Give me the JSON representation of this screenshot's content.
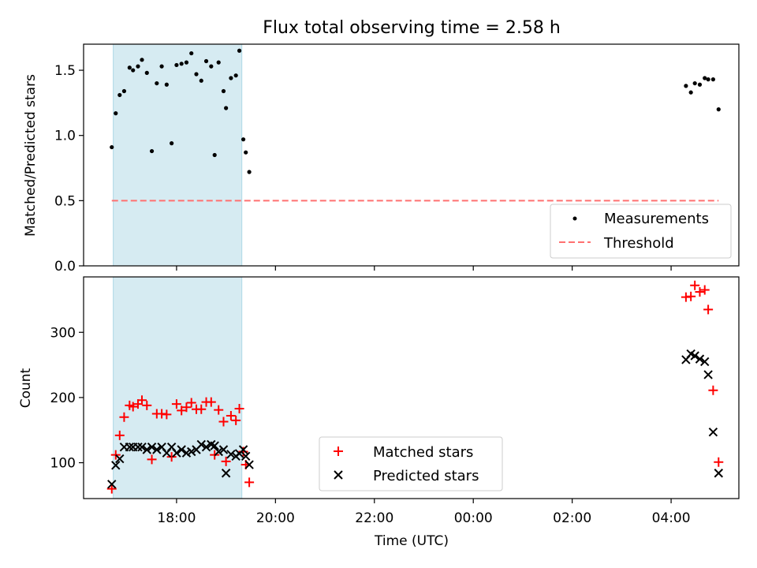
{
  "title": "Flux total observing time = 2.58 h",
  "colors": {
    "shade": "#add8e6",
    "measurement": "#000000",
    "threshold": "#ff7070",
    "matched": "#ff0000",
    "predicted": "#000000"
  },
  "chart_data": [
    {
      "type": "scatter",
      "ylabel": "Matched/Predicted stars",
      "ylim": [
        0.0,
        1.7
      ],
      "yticks": [
        0.0,
        0.5,
        1.0,
        1.5
      ],
      "ytick_labels": [
        "0.0",
        "0.5",
        "1.0",
        "1.5"
      ],
      "xlim_hours": [
        16.12,
        29.37
      ],
      "shaded_region_hours": [
        16.72,
        19.32
      ],
      "legend_position": "lower-right",
      "series": [
        {
          "name": "Measurements",
          "marker": "dot",
          "x_hours": [
            16.69,
            16.77,
            16.85,
            16.94,
            17.05,
            17.12,
            17.22,
            17.3,
            17.4,
            17.5,
            17.6,
            17.7,
            17.8,
            17.9,
            18.0,
            18.1,
            18.2,
            18.3,
            18.4,
            18.5,
            18.6,
            18.7,
            18.77,
            18.85,
            18.95,
            19.0,
            19.1,
            19.2,
            19.27,
            19.35,
            19.4,
            19.47,
            28.3,
            28.4,
            28.48,
            28.58,
            28.68,
            28.75,
            28.85,
            28.96
          ],
          "y": [
            0.91,
            1.17,
            1.31,
            1.34,
            1.52,
            1.5,
            1.53,
            1.58,
            1.48,
            0.88,
            1.4,
            1.53,
            1.39,
            0.94,
            1.54,
            1.55,
            1.56,
            1.63,
            1.47,
            1.42,
            1.57,
            1.53,
            0.85,
            1.56,
            1.34,
            1.21,
            1.44,
            1.46,
            1.65,
            0.97,
            0.87,
            0.72,
            1.38,
            1.33,
            1.4,
            1.39,
            1.44,
            1.43,
            1.43,
            1.2
          ]
        }
      ],
      "threshold": {
        "name": "Threshold",
        "value": 0.5,
        "x_range_hours": [
          16.69,
          28.96
        ]
      }
    },
    {
      "type": "scatter",
      "xlabel": "Time (UTC)",
      "ylabel": "Count",
      "ylim": [
        45,
        385
      ],
      "yticks": [
        100,
        200,
        300
      ],
      "ytick_labels": [
        "100",
        "200",
        "300"
      ],
      "xlim_hours": [
        16.12,
        29.37
      ],
      "shaded_region_hours": [
        16.72,
        19.32
      ],
      "xticks_hours": [
        18,
        20,
        22,
        24,
        26,
        28
      ],
      "xtick_labels": [
        "18:00",
        "20:00",
        "22:00",
        "00:00",
        "02:00",
        "04:00"
      ],
      "legend_position": "lower-center",
      "series": [
        {
          "name": "Matched stars",
          "marker": "plus",
          "x_hours": [
            16.69,
            16.77,
            16.85,
            16.94,
            17.05,
            17.12,
            17.22,
            17.3,
            17.4,
            17.5,
            17.6,
            17.7,
            17.8,
            17.9,
            18.0,
            18.1,
            18.2,
            18.3,
            18.4,
            18.5,
            18.6,
            18.7,
            18.77,
            18.85,
            18.95,
            19.0,
            19.1,
            19.2,
            19.27,
            19.35,
            19.4,
            19.47,
            28.3,
            28.4,
            28.48,
            28.58,
            28.68,
            28.75,
            28.85,
            28.96
          ],
          "y": [
            60,
            112,
            142,
            170,
            188,
            186,
            190,
            196,
            188,
            105,
            175,
            175,
            174,
            109,
            190,
            180,
            185,
            192,
            182,
            182,
            193,
            193,
            112,
            181,
            163,
            102,
            172,
            165,
            183,
            117,
            97,
            70,
            354,
            355,
            372,
            362,
            365,
            335,
            211,
            101
          ]
        },
        {
          "name": "Predicted stars",
          "marker": "x",
          "x_hours": [
            16.69,
            16.77,
            16.85,
            16.94,
            17.05,
            17.12,
            17.22,
            17.3,
            17.4,
            17.5,
            17.6,
            17.7,
            17.8,
            17.9,
            18.0,
            18.1,
            18.2,
            18.3,
            18.4,
            18.5,
            18.6,
            18.7,
            18.77,
            18.85,
            18.95,
            19.0,
            19.1,
            19.2,
            19.27,
            19.35,
            19.4,
            19.47,
            28.3,
            28.4,
            28.48,
            28.58,
            28.68,
            28.75,
            28.85,
            28.96
          ],
          "y": [
            67,
            96,
            106,
            124,
            124,
            124,
            124,
            124,
            120,
            124,
            120,
            124,
            115,
            124,
            115,
            120,
            115,
            117,
            120,
            128,
            124,
            128,
            126,
            117,
            120,
            84,
            113,
            110,
            114,
            120,
            110,
            97,
            258,
            267,
            264,
            259,
            255,
            235,
            147,
            84
          ]
        }
      ]
    }
  ]
}
